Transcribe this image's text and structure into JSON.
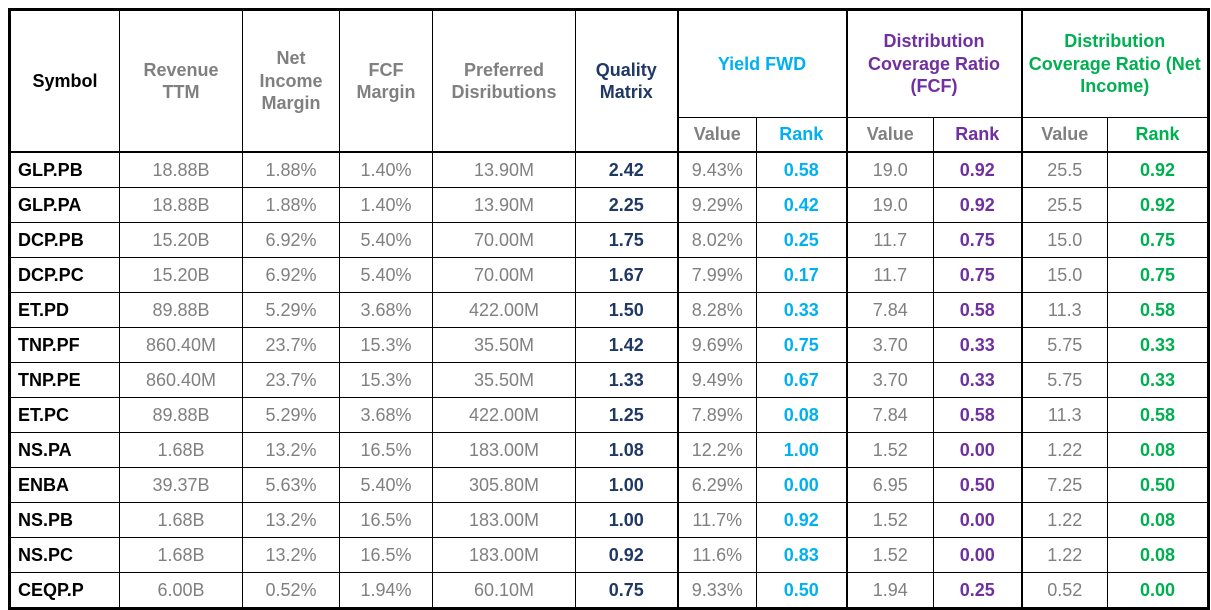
{
  "title": "Preferred stock quality matrix comparison table",
  "colors": {
    "symbol_text": "#000000",
    "muted_value_text": "#808080",
    "quality_matrix_navy": "#1F3864",
    "yield_fwd_cyan": "#00B0F0",
    "dcr_fcf_purple": "#7030A0",
    "dcr_net_income_green": "#00B050",
    "grid_border": "#000000",
    "background": "#ffffff"
  },
  "chart_data": {
    "type": "table",
    "header": {
      "symbol": "Symbol",
      "revenue_ttm": "Revenue TTM",
      "net_income_margin": "Net Income Margin",
      "fcf_margin": "FCF Margin",
      "preferred_distributions": "Preferred Disributions",
      "quality_matrix": "Quality Matrix",
      "yield_fwd": "Yield FWD",
      "dcr_fcf": "Distribution Coverage Ratio (FCF)",
      "dcr_net_income": "Distribution Coverage Ratio (Net Income)",
      "value_label": "Value",
      "rank_label": "Rank"
    },
    "columns": [
      {
        "key": "symbol",
        "label": "Symbol"
      },
      {
        "key": "revenue_ttm",
        "label": "Revenue TTM"
      },
      {
        "key": "net_income_margin",
        "label": "Net Income Margin"
      },
      {
        "key": "fcf_margin",
        "label": "FCF Margin"
      },
      {
        "key": "preferred_distributions",
        "label": "Preferred Disributions"
      },
      {
        "key": "quality_matrix",
        "label": "Quality Matrix"
      },
      {
        "key": "yield_value",
        "label": "Yield FWD Value"
      },
      {
        "key": "yield_rank",
        "label": "Yield FWD Rank"
      },
      {
        "key": "dcr_fcf_value",
        "label": "Distribution Coverage Ratio (FCF) Value"
      },
      {
        "key": "dcr_fcf_rank",
        "label": "Distribution Coverage Ratio (FCF) Rank"
      },
      {
        "key": "dcr_ni_value",
        "label": "Distribution Coverage Ratio (Net Income) Value"
      },
      {
        "key": "dcr_ni_rank",
        "label": "Distribution Coverage Ratio (Net Income) Rank"
      }
    ],
    "rows": [
      {
        "symbol": "GLP.PB",
        "revenue_ttm": "18.88B",
        "net_income_margin": "1.88%",
        "fcf_margin": "1.40%",
        "preferred_distributions": "13.90M",
        "quality_matrix": "2.42",
        "yield_value": "9.43%",
        "yield_rank": "0.58",
        "dcr_fcf_value": "19.0",
        "dcr_fcf_rank": "0.92",
        "dcr_ni_value": "25.5",
        "dcr_ni_rank": "0.92"
      },
      {
        "symbol": "GLP.PA",
        "revenue_ttm": "18.88B",
        "net_income_margin": "1.88%",
        "fcf_margin": "1.40%",
        "preferred_distributions": "13.90M",
        "quality_matrix": "2.25",
        "yield_value": "9.29%",
        "yield_rank": "0.42",
        "dcr_fcf_value": "19.0",
        "dcr_fcf_rank": "0.92",
        "dcr_ni_value": "25.5",
        "dcr_ni_rank": "0.92"
      },
      {
        "symbol": "DCP.PB",
        "revenue_ttm": "15.20B",
        "net_income_margin": "6.92%",
        "fcf_margin": "5.40%",
        "preferred_distributions": "70.00M",
        "quality_matrix": "1.75",
        "yield_value": "8.02%",
        "yield_rank": "0.25",
        "dcr_fcf_value": "11.7",
        "dcr_fcf_rank": "0.75",
        "dcr_ni_value": "15.0",
        "dcr_ni_rank": "0.75"
      },
      {
        "symbol": "DCP.PC",
        "revenue_ttm": "15.20B",
        "net_income_margin": "6.92%",
        "fcf_margin": "5.40%",
        "preferred_distributions": "70.00M",
        "quality_matrix": "1.67",
        "yield_value": "7.99%",
        "yield_rank": "0.17",
        "dcr_fcf_value": "11.7",
        "dcr_fcf_rank": "0.75",
        "dcr_ni_value": "15.0",
        "dcr_ni_rank": "0.75"
      },
      {
        "symbol": "ET.PD",
        "revenue_ttm": "89.88B",
        "net_income_margin": "5.29%",
        "fcf_margin": "3.68%",
        "preferred_distributions": "422.00M",
        "quality_matrix": "1.50",
        "yield_value": "8.28%",
        "yield_rank": "0.33",
        "dcr_fcf_value": "7.84",
        "dcr_fcf_rank": "0.58",
        "dcr_ni_value": "11.3",
        "dcr_ni_rank": "0.58"
      },
      {
        "symbol": "TNP.PF",
        "revenue_ttm": "860.40M",
        "net_income_margin": "23.7%",
        "fcf_margin": "15.3%",
        "preferred_distributions": "35.50M",
        "quality_matrix": "1.42",
        "yield_value": "9.69%",
        "yield_rank": "0.75",
        "dcr_fcf_value": "3.70",
        "dcr_fcf_rank": "0.33",
        "dcr_ni_value": "5.75",
        "dcr_ni_rank": "0.33"
      },
      {
        "symbol": "TNP.PE",
        "revenue_ttm": "860.40M",
        "net_income_margin": "23.7%",
        "fcf_margin": "15.3%",
        "preferred_distributions": "35.50M",
        "quality_matrix": "1.33",
        "yield_value": "9.49%",
        "yield_rank": "0.67",
        "dcr_fcf_value": "3.70",
        "dcr_fcf_rank": "0.33",
        "dcr_ni_value": "5.75",
        "dcr_ni_rank": "0.33"
      },
      {
        "symbol": "ET.PC",
        "revenue_ttm": "89.88B",
        "net_income_margin": "5.29%",
        "fcf_margin": "3.68%",
        "preferred_distributions": "422.00M",
        "quality_matrix": "1.25",
        "yield_value": "7.89%",
        "yield_rank": "0.08",
        "dcr_fcf_value": "7.84",
        "dcr_fcf_rank": "0.58",
        "dcr_ni_value": "11.3",
        "dcr_ni_rank": "0.58"
      },
      {
        "symbol": "NS.PA",
        "revenue_ttm": "1.68B",
        "net_income_margin": "13.2%",
        "fcf_margin": "16.5%",
        "preferred_distributions": "183.00M",
        "quality_matrix": "1.08",
        "yield_value": "12.2%",
        "yield_rank": "1.00",
        "dcr_fcf_value": "1.52",
        "dcr_fcf_rank": "0.00",
        "dcr_ni_value": "1.22",
        "dcr_ni_rank": "0.08"
      },
      {
        "symbol": "ENBA",
        "revenue_ttm": "39.37B",
        "net_income_margin": "5.63%",
        "fcf_margin": "5.40%",
        "preferred_distributions": "305.80M",
        "quality_matrix": "1.00",
        "yield_value": "6.29%",
        "yield_rank": "0.00",
        "dcr_fcf_value": "6.95",
        "dcr_fcf_rank": "0.50",
        "dcr_ni_value": "7.25",
        "dcr_ni_rank": "0.50"
      },
      {
        "symbol": "NS.PB",
        "revenue_ttm": "1.68B",
        "net_income_margin": "13.2%",
        "fcf_margin": "16.5%",
        "preferred_distributions": "183.00M",
        "quality_matrix": "1.00",
        "yield_value": "11.7%",
        "yield_rank": "0.92",
        "dcr_fcf_value": "1.52",
        "dcr_fcf_rank": "0.00",
        "dcr_ni_value": "1.22",
        "dcr_ni_rank": "0.08"
      },
      {
        "symbol": "NS.PC",
        "revenue_ttm": "1.68B",
        "net_income_margin": "13.2%",
        "fcf_margin": "16.5%",
        "preferred_distributions": "183.00M",
        "quality_matrix": "0.92",
        "yield_value": "11.6%",
        "yield_rank": "0.83",
        "dcr_fcf_value": "1.52",
        "dcr_fcf_rank": "0.00",
        "dcr_ni_value": "1.22",
        "dcr_ni_rank": "0.08"
      },
      {
        "symbol": "CEQP.P",
        "revenue_ttm": "6.00B",
        "net_income_margin": "0.52%",
        "fcf_margin": "1.94%",
        "preferred_distributions": "60.10M",
        "quality_matrix": "0.75",
        "yield_value": "9.33%",
        "yield_rank": "0.50",
        "dcr_fcf_value": "1.94",
        "dcr_fcf_rank": "0.25",
        "dcr_ni_value": "0.52",
        "dcr_ni_rank": "0.00"
      }
    ]
  }
}
